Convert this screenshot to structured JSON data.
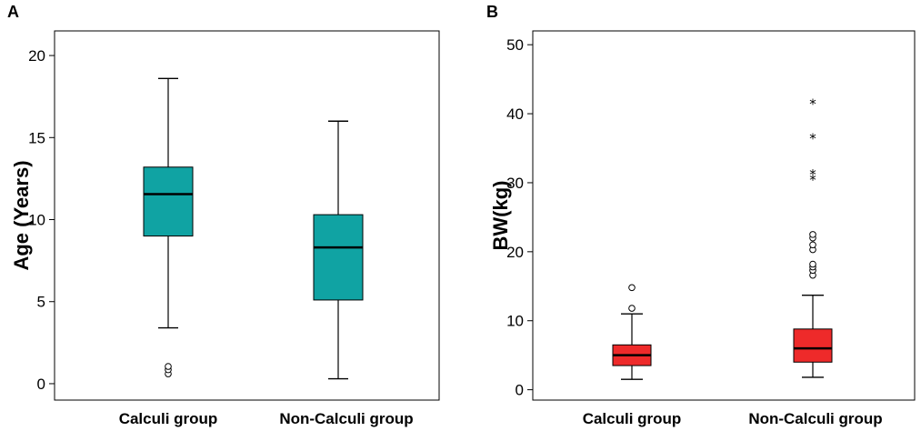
{
  "chart_data": [
    {
      "panel": "A",
      "type": "box",
      "xlabel": "",
      "ylabel": "Age (Years)",
      "ylim": [
        -1,
        21.5
      ],
      "yticks": [
        0,
        5,
        10,
        15,
        20
      ],
      "color": "#10a3a3",
      "categories": [
        "Calculi group",
        "Non-Calculi group"
      ],
      "boxes": [
        {
          "name": "Calculi group",
          "whisker_low": 3.4,
          "q1": 9.0,
          "median": 11.55,
          "q3": 13.2,
          "whisker_high": 18.6,
          "outliers": [
            0.6,
            0.85,
            1.05
          ],
          "extremes": []
        },
        {
          "name": "Non-Calculi group",
          "whisker_low": 0.3,
          "q1": 5.1,
          "median": 8.3,
          "q3": 10.3,
          "whisker_high": 16.0,
          "outliers": [],
          "extremes": []
        }
      ]
    },
    {
      "panel": "B",
      "type": "box",
      "xlabel": "",
      "ylabel": "BW(kg)",
      "ylim": [
        -1.5,
        52
      ],
      "yticks": [
        0,
        10,
        20,
        30,
        40,
        50
      ],
      "color": "#ee2a2a",
      "categories": [
        "Calculi group",
        "Non-Calculi group"
      ],
      "boxes": [
        {
          "name": "Calculi group",
          "whisker_low": 1.5,
          "q1": 3.5,
          "median": 5.0,
          "q3": 6.5,
          "whisker_high": 11.0,
          "outliers": [
            11.8,
            14.8
          ],
          "extremes": []
        },
        {
          "name": "Non-Calculi group",
          "whisker_low": 1.8,
          "q1": 4.0,
          "median": 6.0,
          "q3": 8.8,
          "whisker_high": 13.7,
          "outliers": [
            16.6,
            17.3,
            17.8,
            18.2,
            20.3,
            21.0,
            22.0,
            22.5
          ],
          "extremes": [
            30.5,
            31.3,
            36.5,
            41.5
          ]
        }
      ]
    }
  ]
}
